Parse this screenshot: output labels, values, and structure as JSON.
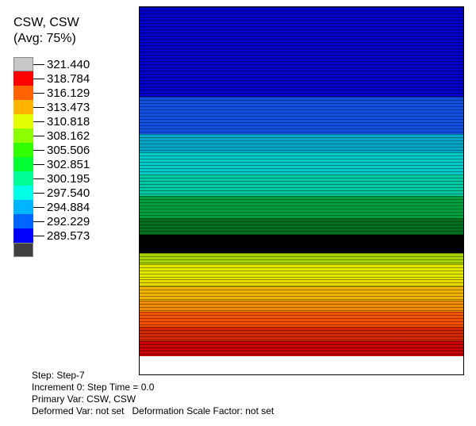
{
  "legend": {
    "title_line1": "CSW, CSW",
    "title_line2": "(Avg: 75%)",
    "values": [
      "321.440",
      "318.784",
      "316.129",
      "313.473",
      "310.818",
      "308.162",
      "305.506",
      "302.851",
      "300.195",
      "297.540",
      "294.884",
      "292.229",
      "289.573"
    ],
    "colors": [
      "#c8c8c8",
      "#ff0000",
      "#ff6400",
      "#ffb400",
      "#e6ff00",
      "#8cff00",
      "#32ff00",
      "#00ff32",
      "#00ff96",
      "#00ffe6",
      "#00b4ff",
      "#0064ff",
      "#0000ff",
      "#404040"
    ]
  },
  "contour_bands": [
    {
      "color": "#0000c8",
      "frac": 0.245
    },
    {
      "color": "#1050e0",
      "frac": 0.1
    },
    {
      "color": "#00a8c8",
      "frac": 0.05
    },
    {
      "color": "#00c8c8",
      "frac": 0.06
    },
    {
      "color": "#00c8a0",
      "frac": 0.06
    },
    {
      "color": "#00a040",
      "frac": 0.06
    },
    {
      "color": "#006e1e",
      "frac": 0.045
    },
    {
      "color": "#000000",
      "frac": 0.05
    },
    {
      "color": "#a8d400",
      "frac": 0.03
    },
    {
      "color": "#e0e800",
      "frac": 0.04
    },
    {
      "color": "#e6d800",
      "frac": 0.02
    },
    {
      "color": "#f0b400",
      "frac": 0.04
    },
    {
      "color": "#f08c00",
      "frac": 0.03
    },
    {
      "color": "#f05000",
      "frac": 0.04
    },
    {
      "color": "#d02800",
      "frac": 0.04
    },
    {
      "color": "#c80000",
      "frac": 0.04
    }
  ],
  "meta": {
    "step": "Step: Step-7",
    "increment": "Increment 0: Step Time = 0.0",
    "primary": "Primary Var: CSW, CSW",
    "deformed": "Deformed Var: not set   Deformation Scale Factor: not set"
  }
}
